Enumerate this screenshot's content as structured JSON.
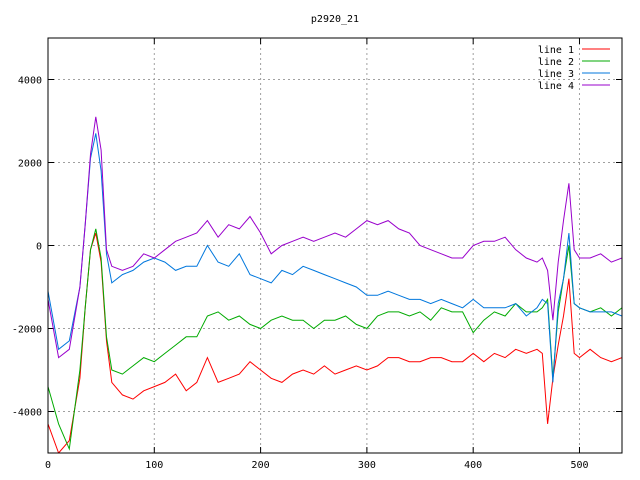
{
  "chart_data": {
    "type": "line",
    "title": "p2920_21",
    "xlabel": "",
    "ylabel": "",
    "xlim": [
      0,
      540
    ],
    "ylim": [
      -5000,
      5000
    ],
    "xticks": [
      0,
      100,
      200,
      300,
      400,
      500
    ],
    "yticks": [
      -4000,
      -2000,
      0,
      2000,
      4000
    ],
    "grid": true,
    "legend_position": "top-right",
    "x": [
      0,
      10,
      20,
      30,
      35,
      40,
      45,
      50,
      55,
      60,
      70,
      80,
      90,
      100,
      110,
      120,
      130,
      140,
      150,
      160,
      170,
      180,
      190,
      200,
      210,
      220,
      230,
      240,
      250,
      260,
      270,
      280,
      290,
      300,
      310,
      320,
      330,
      340,
      350,
      360,
      370,
      380,
      390,
      400,
      410,
      420,
      430,
      440,
      450,
      460,
      465,
      470,
      475,
      480,
      485,
      490,
      495,
      500,
      510,
      520,
      530,
      540
    ],
    "series": [
      {
        "name": "line 1",
        "color": "#ff0000",
        "values": [
          -4300,
          -5000,
          -4700,
          -3200,
          -1500,
          -100,
          300,
          -400,
          -2300,
          -3300,
          -3600,
          -3700,
          -3500,
          -3400,
          -3300,
          -3100,
          -3500,
          -3300,
          -2700,
          -3300,
          -3200,
          -3100,
          -2800,
          -3000,
          -3200,
          -3300,
          -3100,
          -3000,
          -3100,
          -2900,
          -3100,
          -3000,
          -2900,
          -3000,
          -2900,
          -2700,
          -2700,
          -2800,
          -2800,
          -2700,
          -2700,
          -2800,
          -2800,
          -2600,
          -2800,
          -2600,
          -2700,
          -2500,
          -2600,
          -2500,
          -2600,
          -4300,
          -3200,
          -2400,
          -1700,
          -800,
          -2600,
          -2700,
          -2500,
          -2700,
          -2800,
          -2700
        ]
      },
      {
        "name": "line 2",
        "color": "#00aa00",
        "values": [
          -3400,
          -4300,
          -4900,
          -3000,
          -1500,
          -100,
          400,
          -300,
          -2200,
          -3000,
          -3100,
          -2900,
          -2700,
          -2800,
          -2600,
          -2400,
          -2200,
          -2200,
          -1700,
          -1600,
          -1800,
          -1700,
          -1900,
          -2000,
          -1800,
          -1700,
          -1800,
          -1800,
          -2000,
          -1800,
          -1800,
          -1700,
          -1900,
          -2000,
          -1700,
          -1600,
          -1600,
          -1700,
          -1600,
          -1800,
          -1500,
          -1600,
          -1600,
          -2100,
          -1800,
          -1600,
          -1700,
          -1400,
          -1600,
          -1600,
          -1500,
          -1300,
          -3200,
          -1600,
          -800,
          0,
          -1400,
          -1500,
          -1600,
          -1500,
          -1700,
          -1500
        ]
      },
      {
        "name": "line 3",
        "color": "#0077dd",
        "values": [
          -1100,
          -2500,
          -2300,
          -1000,
          500,
          2100,
          2700,
          1800,
          -200,
          -900,
          -700,
          -600,
          -400,
          -300,
          -400,
          -600,
          -500,
          -500,
          0,
          -400,
          -500,
          -200,
          -700,
          -800,
          -900,
          -600,
          -700,
          -500,
          -600,
          -700,
          -800,
          -900,
          -1000,
          -1200,
          -1200,
          -1100,
          -1200,
          -1300,
          -1300,
          -1400,
          -1300,
          -1400,
          -1500,
          -1300,
          -1500,
          -1500,
          -1500,
          -1400,
          -1700,
          -1500,
          -1300,
          -1400,
          -3300,
          -1400,
          -800,
          300,
          -1400,
          -1500,
          -1600,
          -1600,
          -1600,
          -1700
        ]
      },
      {
        "name": "line 4",
        "color": "#9900cc",
        "values": [
          -1300,
          -2700,
          -2500,
          -1000,
          500,
          2200,
          3100,
          2300,
          -100,
          -500,
          -600,
          -500,
          -200,
          -300,
          -100,
          100,
          200,
          300,
          600,
          200,
          500,
          400,
          700,
          300,
          -200,
          0,
          100,
          200,
          100,
          200,
          300,
          200,
          400,
          600,
          500,
          600,
          400,
          300,
          0,
          -100,
          -200,
          -300,
          -300,
          0,
          100,
          100,
          200,
          -100,
          -300,
          -400,
          -300,
          -600,
          -1800,
          -400,
          600,
          1500,
          -100,
          -300,
          -300,
          -200,
          -400,
          -300
        ]
      }
    ]
  }
}
